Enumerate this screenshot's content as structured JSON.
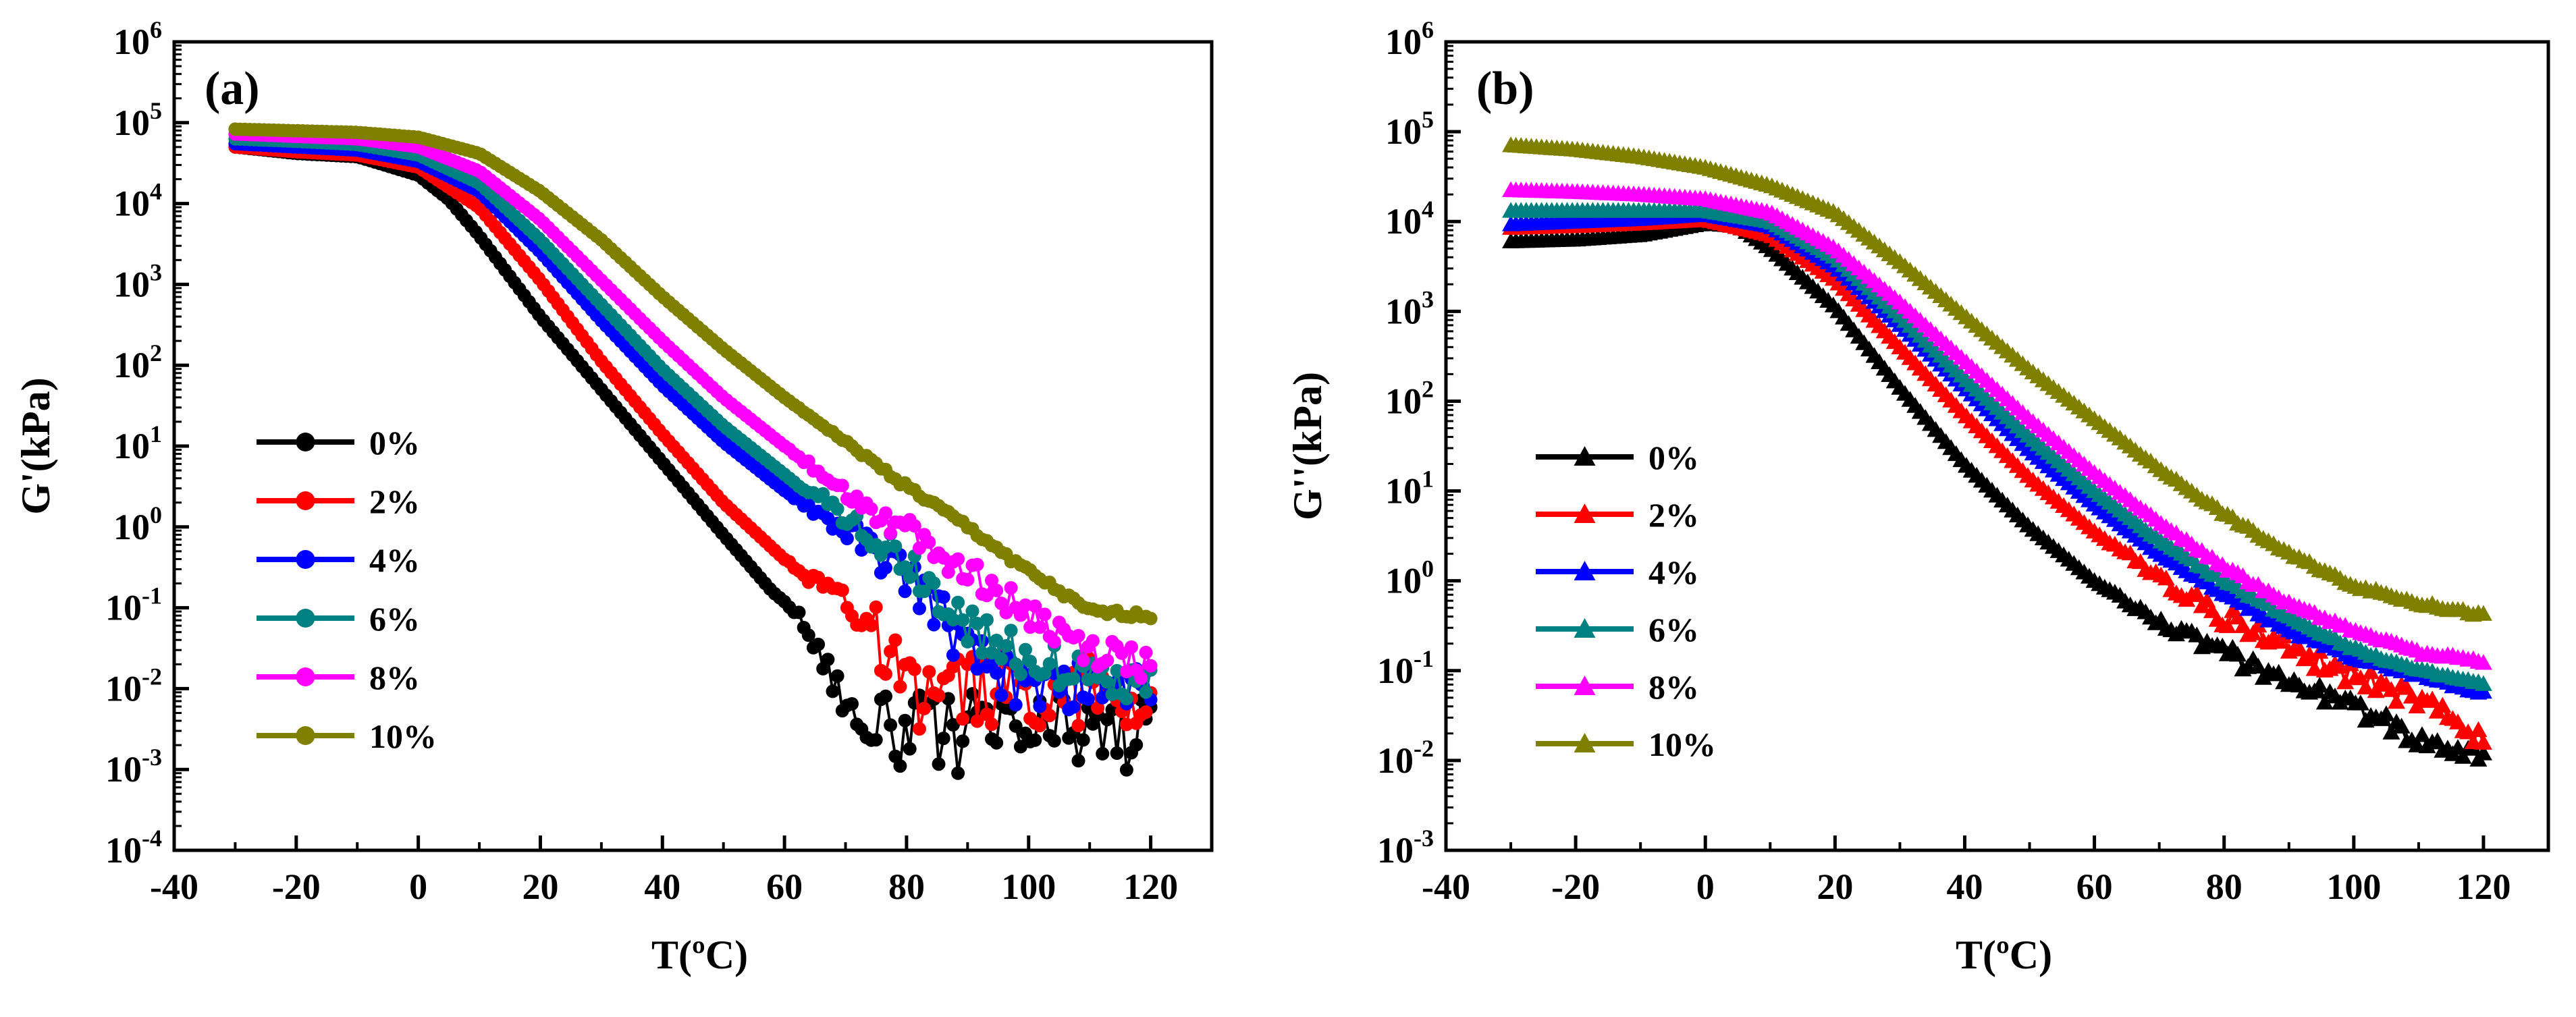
{
  "chart_data": [
    {
      "panel_label": "(a)",
      "type": "line",
      "marker": "circle",
      "ylabel": "G'(kPa)",
      "xlabel": "T(ºC)",
      "xlim": [
        -40,
        130
      ],
      "ylim_log10": [
        -4,
        6
      ],
      "xticks": [
        -40,
        -20,
        0,
        20,
        40,
        60,
        80,
        100,
        120
      ],
      "yticks_exp": [
        -4,
        -3,
        -2,
        -1,
        0,
        1,
        2,
        3,
        4,
        5,
        6
      ],
      "legend": {
        "position": "left-center",
        "entries": [
          "0%",
          "2%",
          "4%",
          "6%",
          "8%",
          "10%"
        ]
      },
      "series": [
        {
          "name": "0%",
          "color": "#000000",
          "noise": 0.5,
          "knots": [
            [
              -30,
              4.7
            ],
            [
              -20,
              4.62
            ],
            [
              -10,
              4.58
            ],
            [
              0,
              4.35
            ],
            [
              5,
              4.05
            ],
            [
              10,
              3.6
            ],
            [
              15,
              3.1
            ],
            [
              20,
              2.6
            ],
            [
              30,
              1.7
            ],
            [
              40,
              0.8
            ],
            [
              50,
              -0.1
            ],
            [
              58,
              -0.8
            ],
            [
              62,
              -1.05
            ],
            [
              66,
              -1.6
            ],
            [
              72,
              -2.4
            ],
            [
              80,
              -2.55
            ],
            [
              90,
              -2.55
            ],
            [
              100,
              -2.55
            ],
            [
              110,
              -2.5
            ],
            [
              120,
              -2.65
            ]
          ]
        },
        {
          "name": "2%",
          "color": "#ff0000",
          "noise": 0.45,
          "knots": [
            [
              -30,
              4.7
            ],
            [
              -20,
              4.64
            ],
            [
              -10,
              4.6
            ],
            [
              0,
              4.45
            ],
            [
              10,
              3.95
            ],
            [
              20,
              3.05
            ],
            [
              30,
              2.05
            ],
            [
              40,
              1.15
            ],
            [
              50,
              0.3
            ],
            [
              60,
              -0.4
            ],
            [
              70,
              -0.9
            ],
            [
              75,
              -1.3
            ],
            [
              80,
              -2.1
            ],
            [
              90,
              -2.0
            ],
            [
              100,
              -2.0
            ],
            [
              110,
              -2.05
            ],
            [
              120,
              -2.1
            ]
          ]
        },
        {
          "name": "4%",
          "color": "#0000ff",
          "noise": 0.3,
          "knots": [
            [
              -30,
              4.74
            ],
            [
              -20,
              4.7
            ],
            [
              -10,
              4.66
            ],
            [
              0,
              4.52
            ],
            [
              10,
              4.15
            ],
            [
              20,
              3.4
            ],
            [
              30,
              2.55
            ],
            [
              40,
              1.75
            ],
            [
              50,
              1.05
            ],
            [
              60,
              0.45
            ],
            [
              70,
              -0.05
            ],
            [
              80,
              -0.6
            ],
            [
              85,
              -1.0
            ],
            [
              90,
              -1.6
            ],
            [
              100,
              -2.0
            ],
            [
              110,
              -1.95
            ],
            [
              120,
              -1.95
            ]
          ]
        },
        {
          "name": "6%",
          "color": "#008080",
          "noise": 0.28,
          "knots": [
            [
              -30,
              4.8
            ],
            [
              -20,
              4.77
            ],
            [
              -10,
              4.73
            ],
            [
              0,
              4.6
            ],
            [
              10,
              4.25
            ],
            [
              20,
              3.55
            ],
            [
              30,
              2.75
            ],
            [
              40,
              1.95
            ],
            [
              50,
              1.25
            ],
            [
              60,
              0.65
            ],
            [
              70,
              0.15
            ],
            [
              80,
              -0.45
            ],
            [
              90,
              -1.2
            ],
            [
              100,
              -1.65
            ],
            [
              110,
              -1.85
            ],
            [
              120,
              -1.95
            ]
          ]
        },
        {
          "name": "8%",
          "color": "#ff00ff",
          "noise": 0.2,
          "knots": [
            [
              -30,
              4.86
            ],
            [
              -20,
              4.83
            ],
            [
              -10,
              4.8
            ],
            [
              0,
              4.7
            ],
            [
              10,
              4.4
            ],
            [
              20,
              3.8
            ],
            [
              30,
              3.05
            ],
            [
              40,
              2.3
            ],
            [
              50,
              1.6
            ],
            [
              60,
              1.0
            ],
            [
              70,
              0.45
            ],
            [
              80,
              -0.05
            ],
            [
              90,
              -0.55
            ],
            [
              100,
              -1.1
            ],
            [
              110,
              -1.55
            ],
            [
              120,
              -1.7
            ]
          ]
        },
        {
          "name": "10%",
          "color": "#808000",
          "noise": 0.04,
          "knots": [
            [
              -30,
              4.92
            ],
            [
              -20,
              4.9
            ],
            [
              -10,
              4.88
            ],
            [
              0,
              4.82
            ],
            [
              10,
              4.62
            ],
            [
              20,
              4.15
            ],
            [
              30,
              3.55
            ],
            [
              40,
              2.85
            ],
            [
              50,
              2.2
            ],
            [
              60,
              1.6
            ],
            [
              70,
              1.05
            ],
            [
              80,
              0.5
            ],
            [
              90,
              0.0
            ],
            [
              100,
              -0.55
            ],
            [
              105,
              -0.8
            ],
            [
              110,
              -1.05
            ],
            [
              120,
              -1.1
            ]
          ]
        }
      ]
    },
    {
      "panel_label": "(b)",
      "type": "line",
      "marker": "triangle",
      "ylabel": "G''(kPa)",
      "xlabel": "T(ºC)",
      "xlim": [
        -40,
        130
      ],
      "ylim_log10": [
        -3,
        6
      ],
      "xticks": [
        -40,
        -20,
        0,
        20,
        40,
        60,
        80,
        100,
        120
      ],
      "yticks_exp": [
        -3,
        -2,
        -1,
        0,
        1,
        2,
        3,
        4,
        5,
        6
      ],
      "legend": {
        "position": "left-center",
        "entries": [
          "0%",
          "2%",
          "4%",
          "6%",
          "8%",
          "10%"
        ]
      },
      "series": [
        {
          "name": "0%",
          "color": "#000000",
          "noise": 0.1,
          "knots": [
            [
              -30,
              3.78
            ],
            [
              -20,
              3.8
            ],
            [
              -10,
              3.85
            ],
            [
              0,
              3.98
            ],
            [
              5,
              3.95
            ],
            [
              10,
              3.7
            ],
            [
              20,
              3.05
            ],
            [
              30,
              2.15
            ],
            [
              40,
              1.3
            ],
            [
              50,
              0.6
            ],
            [
              60,
              0.0
            ],
            [
              70,
              -0.45
            ],
            [
              80,
              -0.8
            ],
            [
              90,
              -1.1
            ],
            [
              100,
              -1.4
            ],
            [
              110,
              -1.75
            ],
            [
              120,
              -1.95
            ]
          ]
        },
        {
          "name": "2%",
          "color": "#ff0000",
          "noise": 0.12,
          "knots": [
            [
              -30,
              3.93
            ],
            [
              -20,
              3.95
            ],
            [
              -10,
              3.98
            ],
            [
              0,
              4.02
            ],
            [
              10,
              3.85
            ],
            [
              20,
              3.35
            ],
            [
              30,
              2.6
            ],
            [
              40,
              1.85
            ],
            [
              50,
              1.15
            ],
            [
              60,
              0.55
            ],
            [
              70,
              0.05
            ],
            [
              80,
              -0.4
            ],
            [
              90,
              -0.75
            ],
            [
              100,
              -1.05
            ],
            [
              110,
              -1.35
            ],
            [
              120,
              -1.75
            ]
          ]
        },
        {
          "name": "4%",
          "color": "#0000ff",
          "noise": 0.02,
          "knots": [
            [
              -30,
              3.97
            ],
            [
              -20,
              4.0
            ],
            [
              -10,
              4.03
            ],
            [
              0,
              4.08
            ],
            [
              10,
              3.95
            ],
            [
              20,
              3.5
            ],
            [
              30,
              2.85
            ],
            [
              40,
              2.15
            ],
            [
              50,
              1.45
            ],
            [
              60,
              0.85
            ],
            [
              70,
              0.3
            ],
            [
              80,
              -0.15
            ],
            [
              90,
              -0.55
            ],
            [
              100,
              -0.85
            ],
            [
              110,
              -1.05
            ],
            [
              120,
              -1.25
            ]
          ]
        },
        {
          "name": "6%",
          "color": "#008080",
          "noise": 0.02,
          "knots": [
            [
              -30,
              4.12
            ],
            [
              -20,
              4.12
            ],
            [
              -10,
              4.12
            ],
            [
              0,
              4.12
            ],
            [
              10,
              4.0
            ],
            [
              20,
              3.6
            ],
            [
              30,
              2.95
            ],
            [
              40,
              2.25
            ],
            [
              50,
              1.6
            ],
            [
              60,
              1.0
            ],
            [
              70,
              0.45
            ],
            [
              80,
              0.0
            ],
            [
              90,
              -0.4
            ],
            [
              100,
              -0.75
            ],
            [
              110,
              -1.0
            ],
            [
              120,
              -1.15
            ]
          ]
        },
        {
          "name": "8%",
          "color": "#ff00ff",
          "noise": 0.02,
          "knots": [
            [
              -30,
              4.35
            ],
            [
              -20,
              4.33
            ],
            [
              -10,
              4.3
            ],
            [
              0,
              4.25
            ],
            [
              10,
              4.1
            ],
            [
              20,
              3.7
            ],
            [
              30,
              3.1
            ],
            [
              40,
              2.45
            ],
            [
              50,
              1.8
            ],
            [
              60,
              1.2
            ],
            [
              70,
              0.65
            ],
            [
              80,
              0.15
            ],
            [
              90,
              -0.25
            ],
            [
              100,
              -0.55
            ],
            [
              110,
              -0.8
            ],
            [
              120,
              -0.9
            ]
          ]
        },
        {
          "name": "10%",
          "color": "#808000",
          "noise": 0.02,
          "knots": [
            [
              -30,
              4.85
            ],
            [
              -20,
              4.8
            ],
            [
              -10,
              4.72
            ],
            [
              0,
              4.6
            ],
            [
              10,
              4.4
            ],
            [
              20,
              4.1
            ],
            [
              30,
              3.55
            ],
            [
              40,
              2.95
            ],
            [
              50,
              2.35
            ],
            [
              60,
              1.8
            ],
            [
              70,
              1.25
            ],
            [
              80,
              0.75
            ],
            [
              90,
              0.3
            ],
            [
              100,
              -0.05
            ],
            [
              110,
              -0.25
            ],
            [
              120,
              -0.38
            ]
          ]
        }
      ]
    }
  ]
}
